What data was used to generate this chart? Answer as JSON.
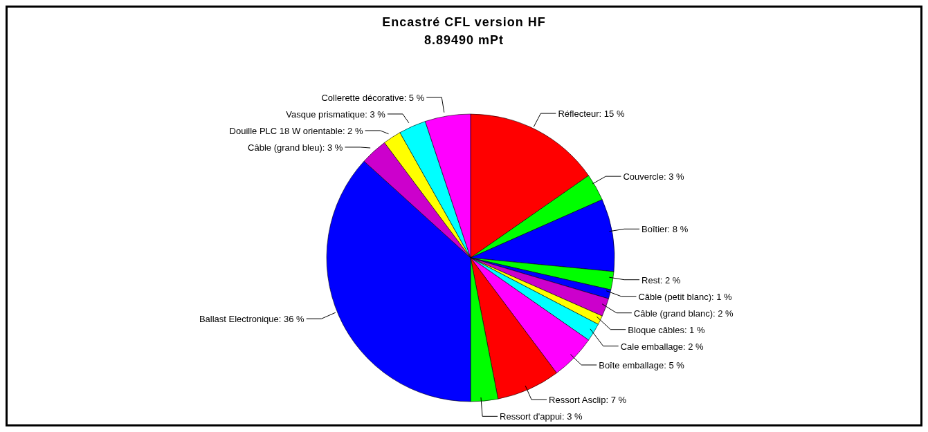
{
  "chart_data": {
    "type": "pie",
    "title": "Encastré CFL version HF",
    "subtitle": "8.89490 mPt",
    "categories": [
      "Réflecteur",
      "Couvercle",
      "Boîtier",
      "Rest",
      "Câble (petit blanc)",
      "Câble (grand blanc)",
      "Bloque câbles",
      "Cale emballage",
      "Boîte emballage",
      "Ressort Asclip",
      "Ressort d'appui",
      "Ballast Electronique",
      "Câble (grand bleu)",
      "Douille PLC 18 W orientable",
      "Vasque prismatique",
      "Collerette décorative"
    ],
    "values": [
      15,
      3,
      8,
      2,
      1,
      2,
      1,
      2,
      5,
      7,
      3,
      36,
      3,
      2,
      3,
      5
    ],
    "value_labels": [
      "15 %",
      "3 %",
      "8 %",
      "2 %",
      "1 %",
      "2 %",
      "1 %",
      "2 %",
      "5 %",
      "7 %",
      "3 %",
      "36 %",
      "3 %",
      "2 %",
      "3 %",
      "5 %"
    ],
    "colors": [
      "#ff0000",
      "#00ff00",
      "#0000ff",
      "#00ff00",
      "#0000ff",
      "#cc00cc",
      "#ffff00",
      "#00ffff",
      "#ff00ff",
      "#ff0000",
      "#00ff00",
      "#0000ff",
      "#cc00cc",
      "#ffff00",
      "#00ffff",
      "#ff00ff"
    ],
    "legend": false
  }
}
